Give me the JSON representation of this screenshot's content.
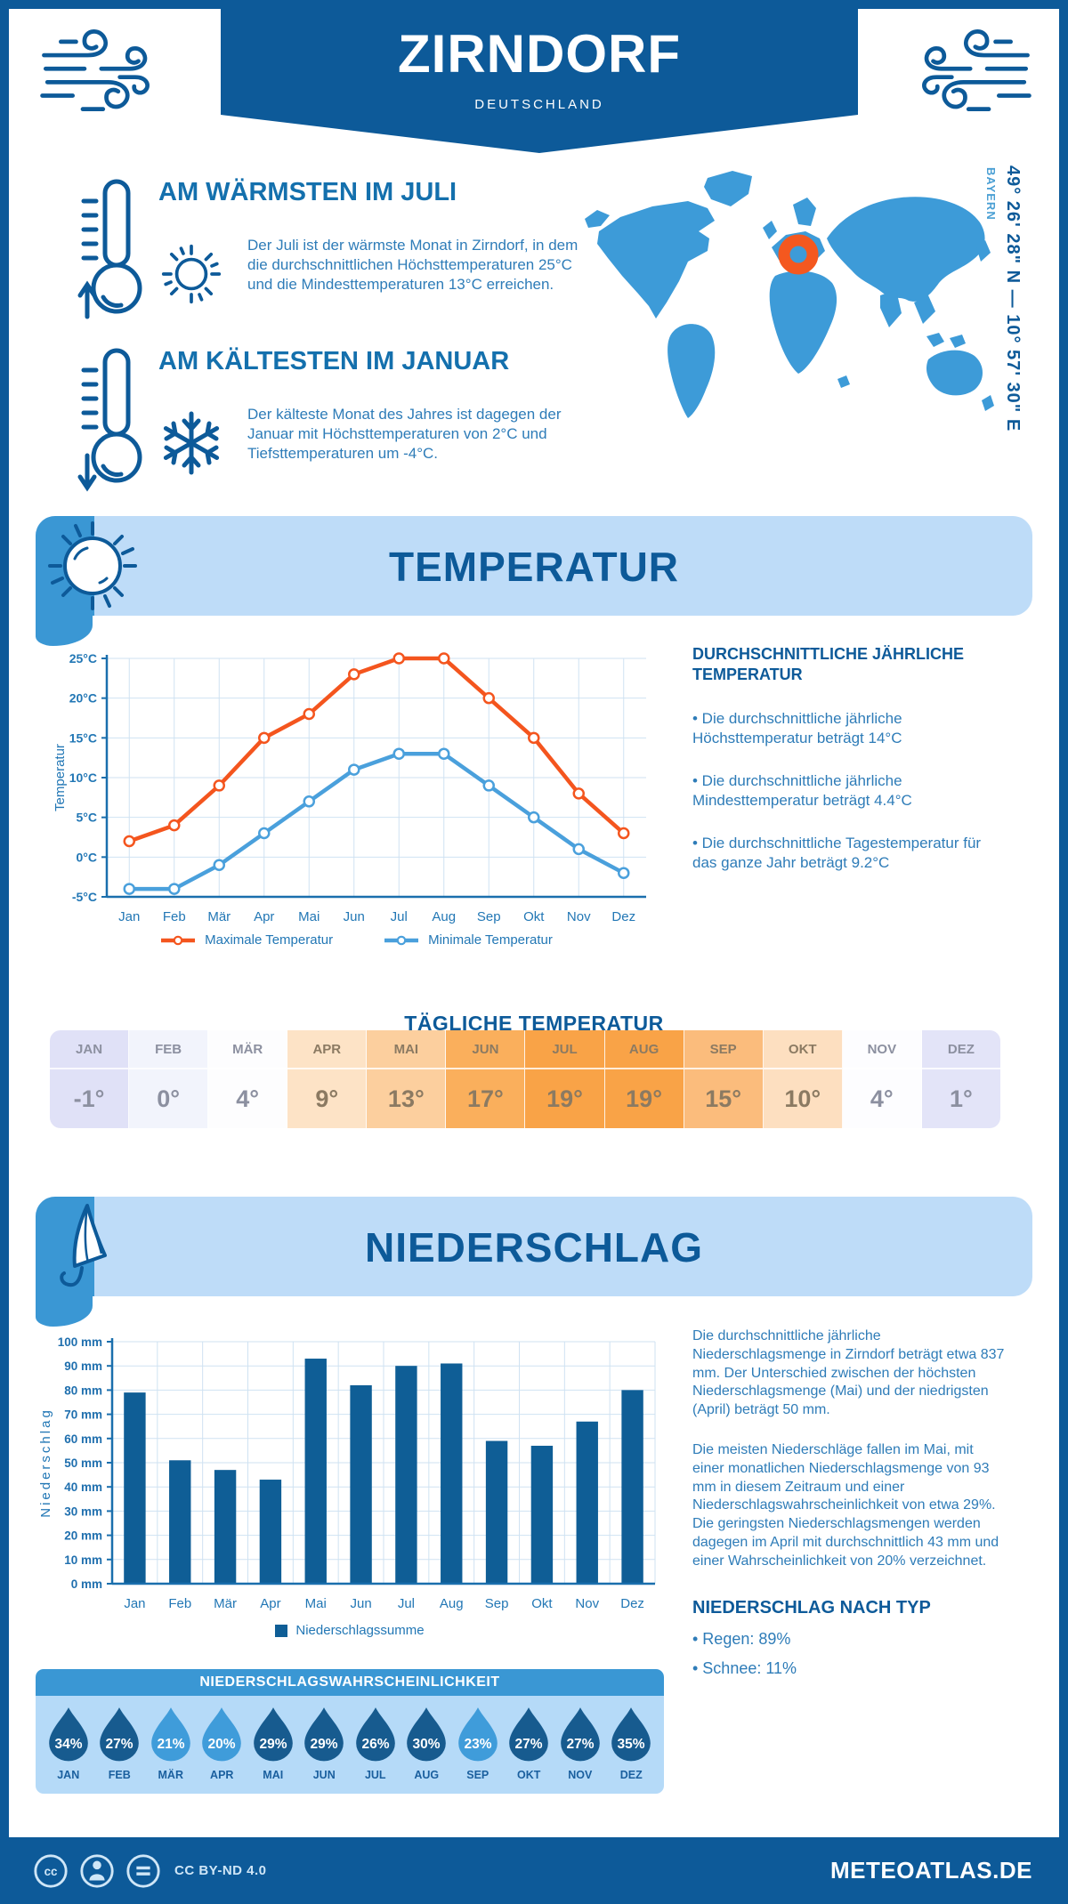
{
  "page": {
    "title": "ZIRNDORF",
    "subtitle": "DEUTSCHLAND",
    "coordinates": "49° 26' 28\" N — 10° 57' 30\" E",
    "region": "BAYERN"
  },
  "highlights": [
    {
      "heading": "AM WÄRMSTEN IM JULI",
      "icon": "sun",
      "text": "Der Juli ist der wärmste Monat in Zirndorf, in dem die durchschnittlichen Höchsttemperaturen 25°C und die Mindesttemperaturen 13°C erreichen."
    },
    {
      "heading": "AM KÄLTESTEN IM JANUAR",
      "icon": "snowflake",
      "text": "Der kälteste Monat des Jahres ist dagegen der Januar mit Höchsttemperaturen von 2°C und Tiefsttemperaturen um -4°C."
    }
  ],
  "sections": {
    "temperature": "TEMPERATUR",
    "precipitation": "NIEDERSCHLAG"
  },
  "temperature": {
    "annual_heading": "DURCHSCHNITTLICHE JÄHRLICHE TEMPERATUR",
    "annual_bullets": [
      "• Die durchschnittliche jährliche Höchsttemperatur beträgt 14°C",
      "• Die durchschnittliche jährliche Mindesttemperatur beträgt 4.4°C",
      "• Die durchschnittliche Tagestemperatur für das ganze Jahr beträgt 9.2°C"
    ],
    "daily_heading": "TÄGLICHE TEMPERATUR",
    "daily": {
      "months": [
        "JAN",
        "FEB",
        "MÄR",
        "APR",
        "MAI",
        "JUN",
        "JUL",
        "AUG",
        "SEP",
        "OKT",
        "NOV",
        "DEZ"
      ],
      "values": [
        "-1°",
        "0°",
        "4°",
        "9°",
        "13°",
        "17°",
        "19°",
        "19°",
        "15°",
        "10°",
        "4°",
        "1°"
      ],
      "cell_colors": [
        "#e0e1f7",
        "#f2f4fc",
        "#fdfdfe",
        "#fde3c6",
        "#fccf9e",
        "#faaf5c",
        "#f9a347",
        "#f9a347",
        "#fbbc7c",
        "#fddfc0",
        "#fdfdff",
        "#e3e4f8"
      ],
      "text_colors": [
        "#8c90a0",
        "#8c90a0",
        "#8c90a0",
        "#8b7a62",
        "#8b7a62",
        "#8b7a62",
        "#8b7a62",
        "#8b7a62",
        "#8b7a62",
        "#8b7a62",
        "#8c90a0",
        "#8c90a0"
      ]
    }
  },
  "precipitation": {
    "paragraphs": [
      "Die durchschnittliche jährliche Niederschlagsmenge in Zirndorf beträgt etwa 837 mm. Der Unterschied zwischen der höchsten Niederschlagsmenge (Mai) und der niedrigsten (April) beträgt 50 mm.",
      "Die meisten Niederschläge fallen im Mai, mit einer monatlichen Niederschlagsmenge von 93 mm in diesem Zeitraum und einer Niederschlagswahrscheinlichkeit von etwa 29%. Die geringsten Niederschlagsmengen werden dagegen im April mit durchschnittlich 43 mm und einer Wahrscheinlichkeit von 20% verzeichnet."
    ],
    "type_heading": "NIEDERSCHLAG NACH TYP",
    "type_bullets": [
      "• Regen: 89%",
      "• Schnee: 11%"
    ],
    "probability": {
      "heading": "NIEDERSCHLAGSWAHRSCHEINLICHKEIT",
      "months": [
        "JAN",
        "FEB",
        "MÄR",
        "APR",
        "MAI",
        "JUN",
        "JUL",
        "AUG",
        "SEP",
        "OKT",
        "NOV",
        "DEZ"
      ],
      "values_pct": [
        34,
        27,
        21,
        20,
        29,
        29,
        26,
        30,
        23,
        27,
        27,
        35
      ],
      "shades": [
        "dark",
        "dark",
        "light",
        "light",
        "dark",
        "dark",
        "dark",
        "dark",
        "light",
        "dark",
        "dark",
        "dark"
      ],
      "drop_color_dark": "#175b8f",
      "drop_color_light": "#3f9cda"
    }
  },
  "chart_data": [
    {
      "type": "line",
      "categories": [
        "Jan",
        "Feb",
        "Mär",
        "Apr",
        "Mai",
        "Jun",
        "Jul",
        "Aug",
        "Sep",
        "Okt",
        "Nov",
        "Dez"
      ],
      "series": [
        {
          "name": "Maximale Temperatur",
          "color": "#f4551e",
          "values": [
            2,
            4,
            9,
            15,
            18,
            23,
            25,
            25,
            20,
            15,
            8,
            3
          ]
        },
        {
          "name": "Minimale Temperatur",
          "color": "#4aa0dc",
          "values": [
            -4,
            -4,
            -1,
            3,
            7,
            11,
            13,
            13,
            9,
            5,
            1,
            -2
          ]
        }
      ],
      "ylabel": "Temperatur",
      "unit": "°C",
      "ylim": [
        -5,
        25
      ],
      "ytick": 5,
      "grid": true,
      "legend_position": "bottom"
    },
    {
      "type": "bar",
      "categories": [
        "Jan",
        "Feb",
        "Mär",
        "Apr",
        "Mai",
        "Jun",
        "Jul",
        "Aug",
        "Sep",
        "Okt",
        "Nov",
        "Dez"
      ],
      "values": [
        79,
        51,
        47,
        43,
        93,
        82,
        90,
        91,
        59,
        57,
        67,
        80
      ],
      "color": "#0f5e96",
      "legend": "Niederschlagssumme",
      "ylabel": "Niederschlag",
      "unit": "mm",
      "ylim": [
        0,
        100
      ],
      "ytick": 10,
      "grid": true,
      "legend_position": "bottom"
    }
  ],
  "footer": {
    "license": "CC BY-ND 4.0",
    "site": "METEOATLAS.DE"
  },
  "colors": {
    "primary_dark_blue": "#0d5a99",
    "ribbon_blue": "#3a97d4",
    "banner_light_blue": "#bedcf8",
    "body_text_blue": "#2e7cb8",
    "map_blue": "#3d9bd8",
    "marker_orange": "#f4581f",
    "grid_line": "#cfe2f2"
  }
}
